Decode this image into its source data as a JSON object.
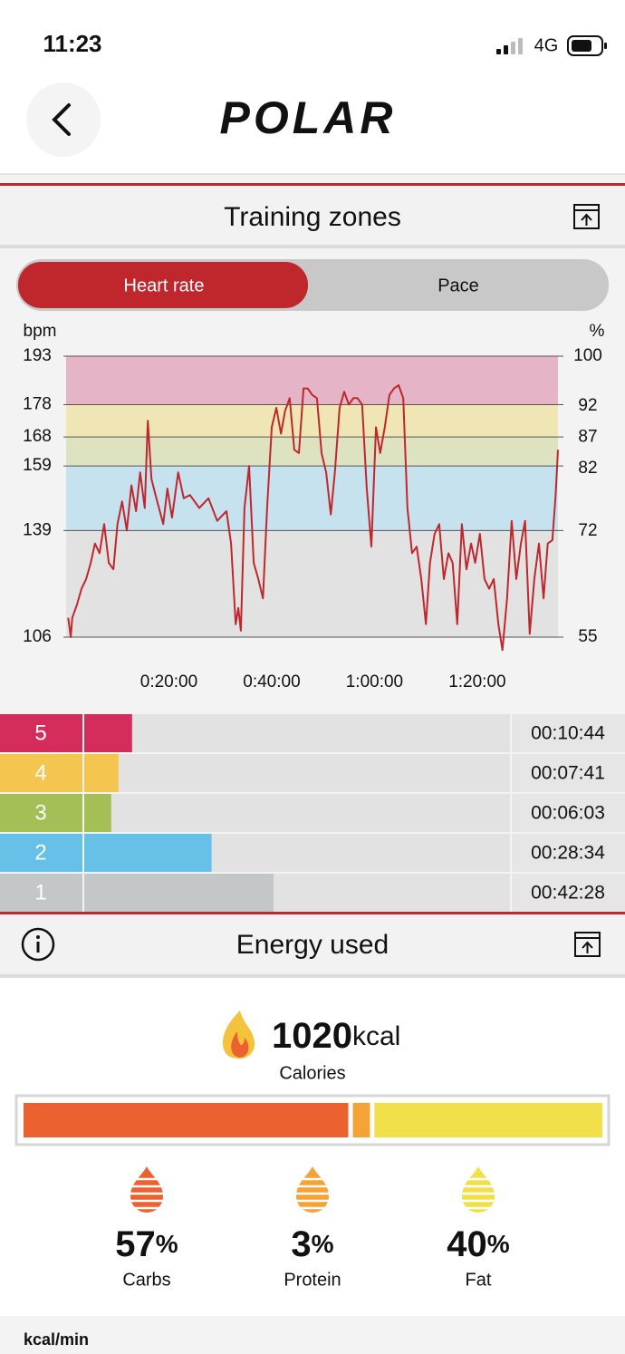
{
  "status_bar": {
    "time": "11:23",
    "network": "4G"
  },
  "header": {
    "brand": "POLAR"
  },
  "training_zones": {
    "title": "Training zones",
    "tabs": [
      "Heart rate",
      "Pace"
    ],
    "active_tab": 0
  },
  "chart_data": {
    "type": "line",
    "y_label": "bpm",
    "y2_label": "%",
    "color": "#c0272d",
    "x": [
      0.4,
      0.9,
      1.2,
      2.1,
      3.0,
      3.9,
      4.8,
      5.6,
      6.5,
      7.4,
      8.3,
      9.2,
      10.0,
      10.9,
      11.8,
      12.7,
      13.6,
      14.4,
      15.3,
      15.9,
      16.6,
      17.4,
      18.9,
      19.7,
      20.6,
      21.8,
      22.9,
      24.1,
      25.9,
      27.7,
      29.4,
      31.2,
      32.1,
      33.0,
      33.5,
      34.0,
      34.7,
      35.6,
      36.5,
      37.4,
      38.3,
      39.1,
      40.0,
      40.9,
      41.8,
      42.6,
      43.5,
      44.4,
      45.3,
      46.2,
      47.0,
      47.9,
      48.8,
      49.7,
      50.6,
      51.5,
      52.3,
      53.2,
      54.1,
      55.0,
      55.9,
      56.7,
      57.6,
      58.5,
      59.4,
      60.3,
      61.1,
      62.0,
      62.9,
      63.8,
      64.7,
      65.6,
      66.4,
      67.3,
      68.2,
      69.1,
      70.0,
      70.8,
      71.7,
      72.6,
      73.5,
      74.4,
      75.2,
      76.1,
      77.0,
      77.9,
      78.8,
      79.6,
      80.5,
      81.4,
      82.3,
      83.2,
      84.1,
      84.9,
      85.8,
      86.7,
      87.6,
      88.5,
      89.3,
      90.2,
      91.1,
      92.0,
      92.9,
      93.7,
      94.6,
      95.2,
      95.7
    ],
    "values": [
      112,
      106,
      112,
      116,
      121,
      124,
      129,
      135,
      132,
      141,
      129,
      127,
      141,
      148,
      139,
      153,
      145,
      157,
      146,
      173,
      155,
      150,
      141,
      152,
      143,
      157,
      149,
      150,
      146,
      149,
      142,
      145,
      135,
      110,
      115,
      108,
      146,
      159,
      129,
      124,
      118,
      146,
      171,
      177,
      169,
      176,
      180,
      164,
      163,
      183,
      183,
      181,
      180,
      163,
      157,
      144,
      157,
      177,
      182,
      178,
      180,
      180,
      178,
      152,
      134,
      171,
      163,
      171,
      181,
      183,
      184,
      180,
      146,
      132,
      134,
      124,
      110,
      129,
      138,
      141,
      124,
      132,
      129,
      110,
      141,
      127,
      135,
      129,
      138,
      124,
      121,
      124,
      110,
      102,
      118,
      142,
      124,
      135,
      142,
      107,
      124,
      135,
      118,
      135,
      136,
      149,
      164
    ],
    "xlim": [
      0,
      95.7
    ],
    "xticks": [
      {
        "value": 20,
        "label": "0:20:00"
      },
      {
        "value": 40,
        "label": "0:40:00"
      },
      {
        "value": 60,
        "label": "1:00:00"
      },
      {
        "value": 80,
        "label": "1:20:00"
      }
    ],
    "ylim": [
      106,
      193
    ],
    "yticks": [
      193,
      178,
      168,
      159,
      139,
      106
    ],
    "y2lim": [
      55,
      100
    ],
    "y2ticks": [
      100,
      92,
      87,
      82,
      72,
      55
    ],
    "band_colors": [
      "#e6b4c7",
      "#f0e5b4",
      "#dde2c0",
      "#c6e2ee",
      "#e2e2e2"
    ]
  },
  "zones": [
    {
      "label": "5",
      "time": {
        "value": 10.733,
        "label": "00:10:44"
      },
      "color": "#d42d5c"
    },
    {
      "label": "4",
      "time": {
        "value": 7.683,
        "label": "00:07:41"
      },
      "color": "#f5c64f"
    },
    {
      "label": "3",
      "time": {
        "value": 6.05,
        "label": "00:06:03"
      },
      "color": "#a3bf55"
    },
    {
      "label": "2",
      "time": {
        "value": 28.567,
        "label": "00:28:34"
      },
      "color": "#66c0e8"
    },
    {
      "label": "1",
      "time": {
        "value": 42.467,
        "label": "00:42:28"
      },
      "color": "#c4c7c7"
    }
  ],
  "energy": {
    "title": "Energy used",
    "calories": {
      "value": 1020,
      "unit": "kcal",
      "label": "Calories"
    },
    "unit": "%",
    "items": [
      {
        "name": "Carbs",
        "value": 57,
        "color": "#ec6130"
      },
      {
        "name": "Protein",
        "value": 3,
        "color": "#f5a335"
      },
      {
        "name": "Fat",
        "value": 40,
        "color": "#f2e04a"
      }
    ]
  },
  "footer": {
    "label": "kcal/min"
  }
}
